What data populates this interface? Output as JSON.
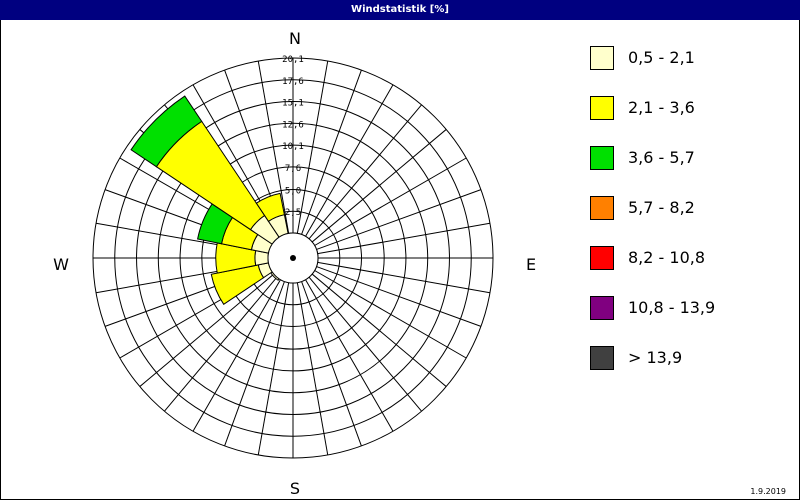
{
  "title": "Windstatistik [%]",
  "footer_date": "1.9.2019",
  "compass": {
    "north": "N",
    "east": "E",
    "south": "S",
    "west": "W"
  },
  "chart_data": {
    "type": "wind-rose",
    "title": "Windstatistik [%]",
    "radial_unit": "%",
    "radial_max": 20.1,
    "radial_ticks": [
      2.5,
      5.0,
      7.6,
      10.1,
      12.6,
      15.1,
      17.6,
      20.1
    ],
    "radial_tick_labels": [
      "2,5",
      "5,0",
      "7,6",
      "10,1",
      "12,6",
      "15,1",
      "17,6",
      "20,1"
    ],
    "sector_count": 16,
    "sector_directions": [
      "N",
      "NNE",
      "NE",
      "ENE",
      "E",
      "ESE",
      "SE",
      "SSE",
      "S",
      "SSW",
      "SW",
      "WSW",
      "W",
      "WNW",
      "NW",
      "NNW"
    ],
    "legend_position": "right",
    "speed_classes": [
      {
        "label": "0,5 - 2,1",
        "color": "#FFFFCC"
      },
      {
        "label": "2,1 - 3,6",
        "color": "#FFFF00"
      },
      {
        "label": "3,6 - 5,7",
        "color": "#00E000"
      },
      {
        "label": "5,7 - 8,2",
        "color": "#FF8000"
      },
      {
        "label": "8,2 - 10,8",
        "color": "#FF0000"
      },
      {
        "label": "10,8 - 13,9",
        "color": "#800080"
      },
      {
        "label": " > 13,9",
        "color": "#404040"
      }
    ],
    "series": [
      {
        "name": "0,5 - 2,1",
        "values": [
          0,
          0,
          0,
          0,
          0,
          0,
          0,
          0,
          0,
          0,
          0.2,
          1.2,
          1.5,
          2.0,
          3.0,
          2.2
        ]
      },
      {
        "name": "2,1 - 3,6",
        "values": [
          0,
          0,
          0,
          0,
          0,
          0,
          0,
          0,
          0,
          0,
          0,
          5.5,
          4.5,
          3.5,
          13.0,
          2.5
        ]
      },
      {
        "name": "3,6 - 5,7",
        "values": [
          0,
          0,
          0,
          0,
          0,
          0,
          0,
          0,
          0,
          0,
          0,
          0,
          0,
          2.8,
          3.5,
          0
        ]
      },
      {
        "name": "5,7 - 8,2",
        "values": [
          0,
          0,
          0,
          0,
          0,
          0,
          0,
          0,
          0,
          0,
          0,
          0,
          0,
          0,
          0,
          0
        ]
      },
      {
        "name": "8,2 - 10,8",
        "values": [
          0,
          0,
          0,
          0,
          0,
          0,
          0,
          0,
          0,
          0,
          0,
          0,
          0,
          0,
          0,
          0
        ]
      },
      {
        "name": "10,8 - 13,9",
        "values": [
          0,
          0,
          0,
          0,
          0,
          0,
          0,
          0,
          0,
          0,
          0,
          0,
          0,
          0,
          0,
          0
        ]
      },
      {
        "name": " > 13,9",
        "values": [
          0,
          0,
          0,
          0,
          0,
          0,
          0,
          0,
          0,
          0,
          0,
          0,
          0,
          0,
          0,
          0
        ]
      }
    ]
  }
}
